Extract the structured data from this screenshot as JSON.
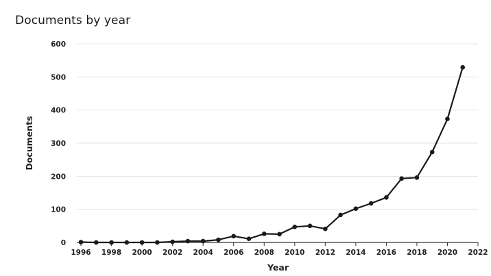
{
  "chart_data": {
    "type": "line",
    "title": "Documents by year",
    "xlabel": "Year",
    "ylabel": "Documents",
    "xlim": [
      1996,
      2022
    ],
    "ylim": [
      0,
      600
    ],
    "x_ticks": [
      "1996",
      "1998",
      "2000",
      "2002",
      "2004",
      "2006",
      "2008",
      "2010",
      "2012",
      "2014",
      "2016",
      "2018",
      "2020",
      "2022"
    ],
    "y_ticks": [
      "0",
      "100",
      "200",
      "300",
      "400",
      "500",
      "600"
    ],
    "grid": "horizontal",
    "legend": "none",
    "series": [
      {
        "x": [
          1996,
          1997,
          1998,
          1999,
          2000,
          2001,
          2002,
          2003,
          2004,
          2005,
          2006,
          2007,
          2008,
          2009,
          2010,
          2011,
          2012,
          2013,
          2014,
          2015,
          2016,
          2017,
          2018,
          2019,
          2020,
          2021
        ],
        "values": [
          1,
          0,
          0,
          0,
          0,
          0,
          2,
          4,
          4,
          8,
          19,
          11,
          26,
          25,
          47,
          50,
          41,
          83,
          102,
          118,
          136,
          193,
          196,
          273,
          373,
          529
        ]
      }
    ],
    "colors": {
      "line": "#1a1a1a",
      "marker": "#1a1a1a",
      "grid": "#e3e3e3",
      "axis": "#333333"
    }
  }
}
